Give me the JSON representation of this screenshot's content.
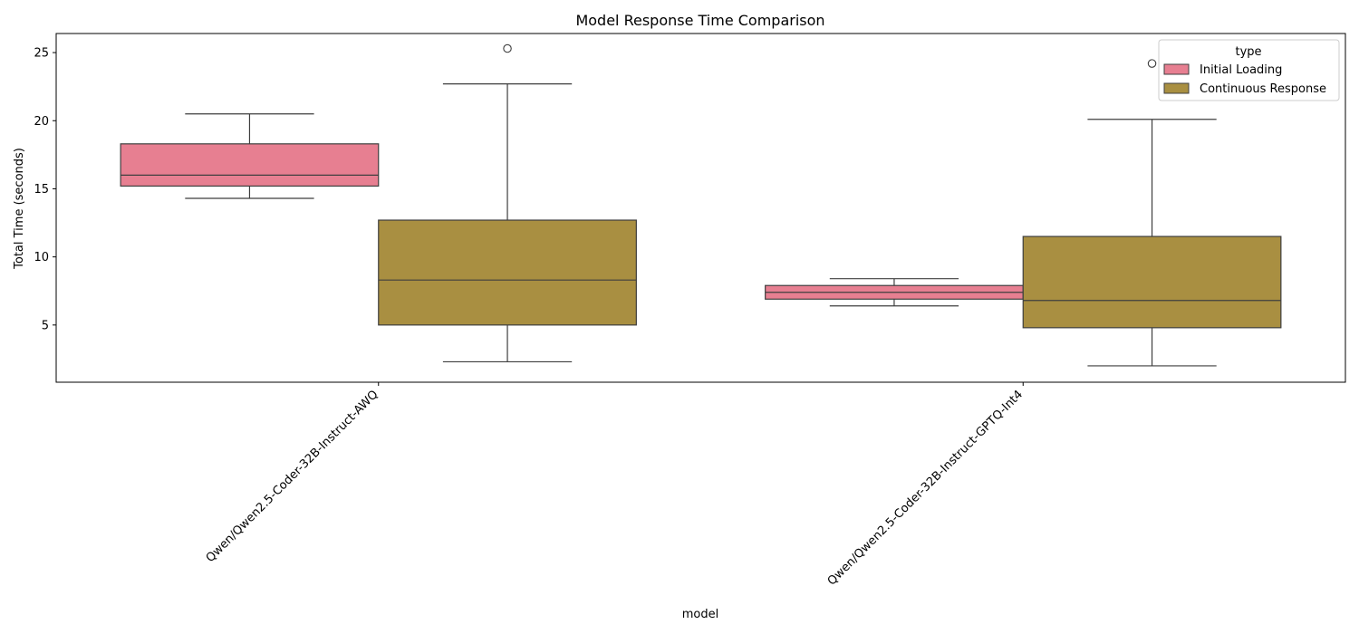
{
  "chart_data": {
    "type": "boxplot",
    "title": "Model Response Time Comparison",
    "xlabel": "model",
    "ylabel": "Total Time (seconds)",
    "ylim": [
      0.8,
      26.4
    ],
    "yticks": [
      5,
      10,
      15,
      20,
      25
    ],
    "categories": [
      "Qwen/Qwen2.5-Coder-32B-Instruct-AWQ",
      "Qwen/Qwen2.5-Coder-32B-Instruct-GPTQ-Int4"
    ],
    "legend": {
      "title": "type",
      "position": "top-right"
    },
    "grid": false,
    "series": [
      {
        "name": "Initial Loading",
        "color": "#e77f91",
        "boxes": [
          {
            "whisker_low": 14.3,
            "q1": 15.2,
            "median": 16.0,
            "q3": 18.3,
            "whisker_high": 20.5,
            "outliers": []
          },
          {
            "whisker_low": 6.4,
            "q1": 6.9,
            "median": 7.4,
            "q3": 7.9,
            "whisker_high": 8.4,
            "outliers": []
          }
        ]
      },
      {
        "name": "Continuous Response",
        "color": "#a98f41",
        "boxes": [
          {
            "whisker_low": 2.3,
            "q1": 5.0,
            "median": 8.3,
            "q3": 12.7,
            "whisker_high": 22.7,
            "outliers": [
              25.3
            ]
          },
          {
            "whisker_low": 2.0,
            "q1": 4.8,
            "median": 6.8,
            "q3": 11.5,
            "whisker_high": 20.1,
            "outliers": [
              24.2
            ]
          }
        ]
      }
    ]
  }
}
